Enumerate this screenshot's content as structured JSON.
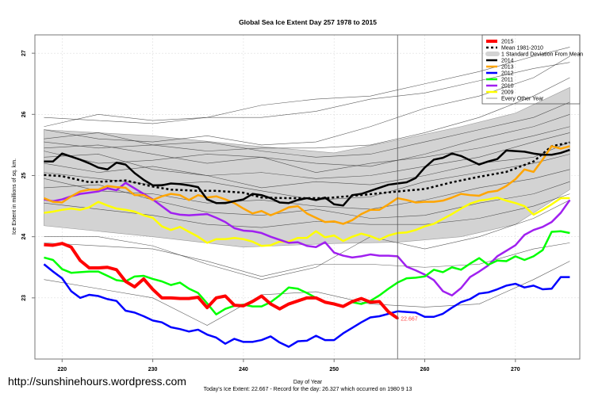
{
  "chart_data": {
    "type": "line",
    "title": "Global Sea Ice Extent Day 257 1978 to 2015",
    "xlabel": "Day of Year",
    "ylabel": "Ice Extent in millions of sq. km.",
    "subtitle": "Today's Ice Extent: 22.667  - Record for the day: 26.327 which occurred on 1980 9 13",
    "xlim": [
      217,
      277.1
    ],
    "ylim": [
      22.0,
      27.3
    ],
    "xticks": [
      220,
      230,
      240,
      250,
      260,
      270
    ],
    "yticks": [
      23,
      24,
      25,
      26,
      27
    ],
    "grid": true,
    "current_day": 257,
    "current_value_label": "22.667",
    "legend_position": "top-right",
    "legend": [
      "2015",
      "Mean 1981-2010",
      "1 Standard Deviation From Mean",
      "2014",
      "2013",
      "2012",
      "2011",
      "2010",
      "2009",
      "Every Other Year"
    ],
    "sd_band": {
      "days": [
        218,
        230,
        240,
        250,
        257,
        264,
        270,
        276
      ],
      "upper": [
        25.75,
        25.65,
        25.5,
        25.37,
        25.58,
        25.8,
        26.02,
        26.44
      ],
      "lower": [
        24.18,
        24.0,
        23.83,
        23.89,
        23.91,
        24.0,
        24.2,
        24.77
      ]
    },
    "mean": {
      "name": "Mean 1981-2010",
      "days": [
        218,
        220,
        223,
        227,
        230,
        232,
        235,
        237,
        240,
        242,
        245,
        249,
        253,
        257,
        260,
        263,
        266,
        269,
        272,
        274,
        276
      ],
      "values": [
        25.01,
        24.99,
        24.89,
        24.92,
        24.82,
        24.77,
        24.75,
        24.75,
        24.72,
        24.64,
        24.63,
        24.63,
        24.68,
        24.74,
        24.78,
        24.89,
        24.98,
        25.06,
        25.23,
        25.48,
        25.54
      ]
    },
    "series": [
      {
        "name": "2015",
        "color": "#ff0000",
        "start_day": 218,
        "values": [
          23.87,
          23.86,
          23.89,
          23.83,
          23.61,
          23.49,
          23.49,
          23.5,
          23.46,
          23.27,
          23.18,
          23.31,
          23.14,
          23.0,
          23.0,
          22.99,
          22.99,
          23.01,
          22.84,
          23.0,
          23.03,
          22.88,
          22.87,
          22.94,
          23.03,
          22.9,
          22.82,
          22.9,
          22.95,
          23.0,
          23.0,
          22.93,
          22.9,
          22.86,
          22.94,
          22.99,
          22.93,
          22.94,
          22.77,
          22.667
        ]
      },
      {
        "name": "2014",
        "color": "#000000",
        "start_day": 218,
        "values": [
          25.23,
          25.23,
          25.36,
          25.31,
          25.26,
          25.2,
          25.13,
          25.1,
          25.21,
          25.18,
          25.04,
          24.93,
          24.84,
          24.84,
          24.87,
          24.86,
          24.84,
          24.81,
          24.61,
          24.55,
          24.55,
          24.58,
          24.61,
          24.7,
          24.68,
          24.63,
          24.56,
          24.55,
          24.6,
          24.63,
          24.6,
          24.64,
          24.53,
          24.51,
          24.68,
          24.7,
          24.75,
          24.8,
          24.85,
          24.87,
          24.89,
          24.96,
          25.13,
          25.26,
          25.29,
          25.36,
          25.32,
          25.25,
          25.18,
          25.23,
          25.27,
          25.41,
          25.4,
          25.39,
          25.36,
          25.34,
          25.34,
          25.37,
          25.42
        ]
      },
      {
        "name": "2013",
        "color": "#ffa500",
        "start_day": 218,
        "values": [
          24.63,
          24.57,
          24.56,
          24.66,
          24.74,
          24.77,
          24.77,
          24.83,
          24.81,
          24.8,
          24.68,
          24.68,
          24.6,
          24.66,
          24.7,
          24.68,
          24.6,
          24.68,
          24.64,
          24.66,
          24.61,
          24.55,
          24.46,
          24.38,
          24.42,
          24.35,
          24.41,
          24.48,
          24.5,
          24.38,
          24.31,
          24.24,
          24.25,
          24.21,
          24.27,
          24.37,
          24.44,
          24.44,
          24.53,
          24.63,
          24.6,
          24.56,
          24.57,
          24.57,
          24.59,
          24.64,
          24.7,
          24.68,
          24.67,
          24.73,
          24.75,
          24.83,
          24.94,
          25.1,
          25.06,
          25.26,
          25.48,
          25.44,
          25.48
        ]
      },
      {
        "name": "2012",
        "color": "#0000ff",
        "start_day": 218,
        "values": [
          23.55,
          23.43,
          23.32,
          23.11,
          23.0,
          23.05,
          23.03,
          22.98,
          22.95,
          22.79,
          22.76,
          22.7,
          22.63,
          22.6,
          22.52,
          22.49,
          22.45,
          22.48,
          22.4,
          22.35,
          22.25,
          22.33,
          22.28,
          22.28,
          22.31,
          22.37,
          22.27,
          22.2,
          22.29,
          22.3,
          22.38,
          22.31,
          22.31,
          22.42,
          22.51,
          22.6,
          22.68,
          22.7,
          22.74,
          22.78,
          22.77,
          22.76,
          22.69,
          22.69,
          22.74,
          22.84,
          22.93,
          22.98,
          23.07,
          23.09,
          23.14,
          23.2,
          23.23,
          23.17,
          23.2,
          23.14,
          23.15,
          23.34,
          23.34
        ]
      },
      {
        "name": "2011",
        "color": "#00ff00",
        "start_day": 218,
        "values": [
          23.66,
          23.62,
          23.47,
          23.41,
          23.42,
          23.43,
          23.43,
          23.36,
          23.29,
          23.27,
          23.35,
          23.36,
          23.31,
          23.27,
          23.21,
          23.25,
          23.15,
          23.08,
          22.91,
          22.73,
          22.82,
          22.87,
          22.89,
          22.86,
          22.86,
          22.93,
          23.04,
          23.17,
          23.15,
          23.08,
          23.0,
          22.93,
          22.91,
          22.86,
          22.93,
          22.9,
          22.95,
          23.04,
          23.15,
          23.25,
          23.32,
          23.33,
          23.35,
          23.46,
          23.42,
          23.5,
          23.46,
          23.56,
          23.65,
          23.54,
          23.61,
          23.6,
          23.68,
          23.62,
          23.68,
          23.78,
          24.08,
          24.09,
          24.06
        ]
      },
      {
        "name": "2010",
        "color": "#a020f0",
        "start_day": 218,
        "values": [
          24.61,
          24.58,
          24.61,
          24.66,
          24.7,
          24.72,
          24.74,
          24.79,
          24.76,
          24.88,
          24.79,
          24.7,
          24.61,
          24.5,
          24.39,
          24.36,
          24.35,
          24.36,
          24.37,
          24.31,
          24.24,
          24.14,
          24.1,
          24.09,
          24.06,
          24.0,
          23.95,
          23.9,
          23.91,
          23.85,
          23.83,
          23.91,
          23.74,
          23.69,
          23.66,
          23.68,
          23.71,
          23.69,
          23.69,
          23.68,
          23.51,
          23.45,
          23.38,
          23.29,
          23.11,
          23.04,
          23.16,
          23.34,
          23.43,
          23.53,
          23.68,
          23.77,
          23.86,
          24.03,
          24.11,
          24.16,
          24.24,
          24.39,
          24.6
        ]
      },
      {
        "name": "2009",
        "color": "#ffff00",
        "start_day": 218,
        "values": [
          24.39,
          24.41,
          24.44,
          24.46,
          24.44,
          24.48,
          24.57,
          24.51,
          24.46,
          24.44,
          24.41,
          24.35,
          24.31,
          24.17,
          24.11,
          24.16,
          24.08,
          24.0,
          23.9,
          23.96,
          23.96,
          23.98,
          23.96,
          23.92,
          23.85,
          23.86,
          23.92,
          23.92,
          23.98,
          23.98,
          24.09,
          23.99,
          24.02,
          23.93,
          24.0,
          24.05,
          24.01,
          23.95,
          24.02,
          24.06,
          24.07,
          24.11,
          24.17,
          24.21,
          24.29,
          24.37,
          24.46,
          24.54,
          24.59,
          24.61,
          24.64,
          24.59,
          24.55,
          24.5,
          24.36,
          24.44,
          24.53,
          24.63,
          24.63
        ]
      }
    ],
    "other_years": {
      "name": "Every Other Year",
      "days": [
        218,
        224,
        230,
        236,
        242,
        248,
        254,
        260,
        266,
        272,
        276
      ],
      "lines": [
        [
          25.95,
          25.9,
          25.85,
          25.95,
          26.15,
          26.25,
          26.3,
          26.5,
          26.7,
          26.95,
          27.1
        ],
        [
          25.8,
          26.0,
          25.9,
          25.95,
          25.95,
          26.05,
          26.25,
          26.35,
          26.55,
          26.75,
          26.85
        ],
        [
          25.75,
          25.6,
          25.55,
          25.65,
          25.5,
          25.55,
          25.8,
          26.1,
          26.3,
          26.6,
          26.95
        ],
        [
          25.6,
          25.7,
          25.5,
          25.4,
          25.45,
          25.45,
          25.5,
          25.7,
          25.95,
          26.3,
          26.6
        ],
        [
          25.55,
          25.45,
          25.5,
          25.55,
          25.4,
          25.3,
          25.35,
          25.55,
          25.75,
          25.95,
          26.2
        ],
        [
          25.45,
          25.5,
          25.35,
          25.2,
          25.3,
          25.2,
          25.15,
          25.35,
          25.6,
          25.8,
          26.0
        ],
        [
          25.4,
          25.2,
          25.25,
          25.35,
          25.3,
          25.05,
          25.2,
          25.3,
          25.45,
          25.65,
          25.8
        ],
        [
          25.3,
          25.35,
          25.1,
          25.0,
          25.05,
          24.95,
          25.0,
          25.15,
          25.3,
          25.55,
          25.7
        ],
        [
          25.2,
          25.05,
          25.15,
          25.0,
          24.8,
          24.9,
          24.85,
          25.0,
          25.2,
          25.3,
          25.55
        ],
        [
          25.05,
          24.95,
          24.85,
          24.9,
          24.75,
          24.6,
          24.65,
          24.9,
          25.05,
          25.2,
          25.35
        ],
        [
          24.95,
          24.75,
          24.7,
          24.55,
          24.6,
          24.5,
          24.45,
          24.6,
          24.8,
          24.95,
          25.1
        ],
        [
          24.8,
          24.85,
          24.6,
          24.4,
          24.35,
          24.45,
          24.3,
          24.35,
          24.55,
          24.7,
          24.9
        ],
        [
          24.55,
          24.45,
          24.35,
          24.2,
          24.15,
          24.25,
          24.2,
          24.2,
          24.3,
          24.5,
          24.7
        ],
        [
          24.0,
          24.0,
          23.85,
          23.55,
          23.3,
          23.5,
          24.0,
          23.8,
          24.0,
          24.3,
          24.6
        ],
        [
          23.9,
          23.85,
          23.8,
          23.6,
          23.35,
          23.55,
          23.55,
          23.5,
          23.55,
          23.8,
          23.9
        ],
        [
          23.3,
          23.15,
          23.0,
          22.55,
          23.05,
          23.1,
          22.9,
          22.85,
          22.9,
          23.3,
          23.6
        ]
      ]
    }
  },
  "watermark": "http://sunshinehours.wordpress.com"
}
